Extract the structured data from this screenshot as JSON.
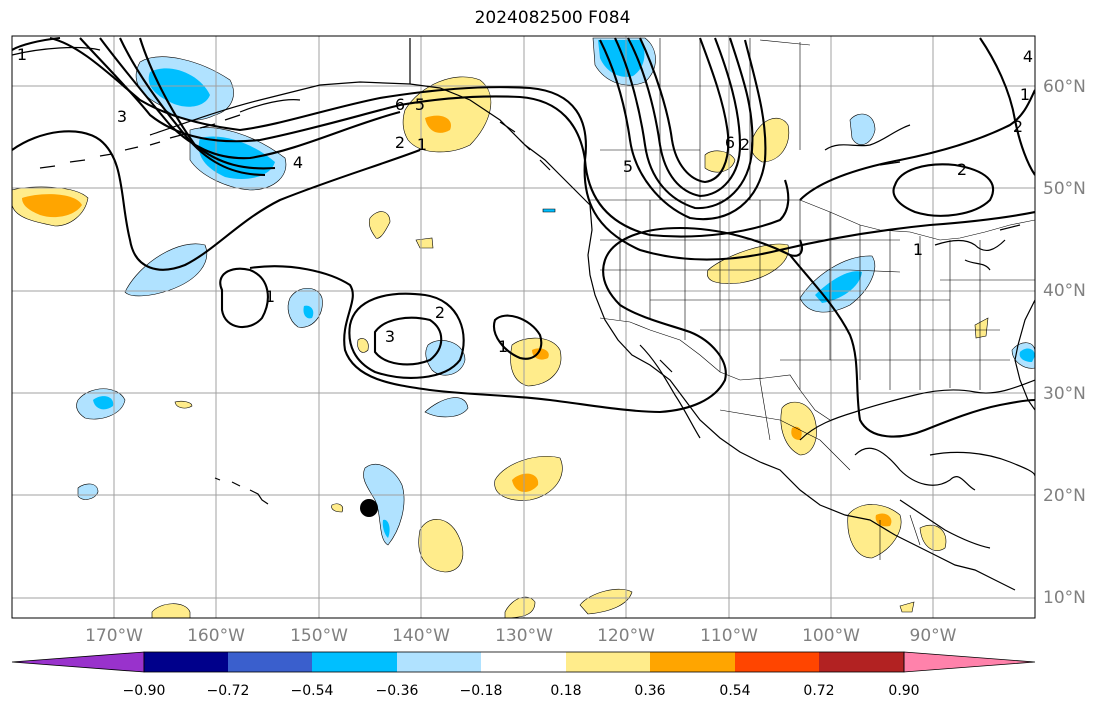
{
  "title": "2024082500 F084",
  "lon_labels": [
    "170°W",
    "160°W",
    "150°W",
    "140°W",
    "130°W",
    "120°W",
    "110°W",
    "100°W",
    "90°W"
  ],
  "lat_labels": [
    "60°N",
    "50°N",
    "40°N",
    "30°N",
    "20°N",
    "10°N"
  ],
  "colorbar": {
    "colors": [
      "#9932cc",
      "#00008b",
      "#3a5fcd",
      "#00bfff",
      "#b0e2ff",
      "#ffffff",
      "#ffec8b",
      "#ffa500",
      "#ff4500",
      "#b22222",
      "#ff82ab"
    ],
    "tick_labels": [
      "−0.90",
      "−0.72",
      "−0.54",
      "−0.36",
      "−0.18",
      "0.18",
      "0.36",
      "0.54",
      "0.72",
      "0.90"
    ]
  },
  "contour_labels": [
    "6",
    "5",
    "4",
    "3",
    "3",
    "2",
    "2",
    "2",
    "2",
    "2",
    "1",
    "1",
    "1",
    "1",
    "1",
    "1",
    "5",
    "6",
    "4"
  ],
  "map_colors": {
    "positive_light": "#ffec8b",
    "positive_strong": "#ffa500",
    "negative_light": "#b0e2ff",
    "negative_strong": "#00bfff"
  }
}
